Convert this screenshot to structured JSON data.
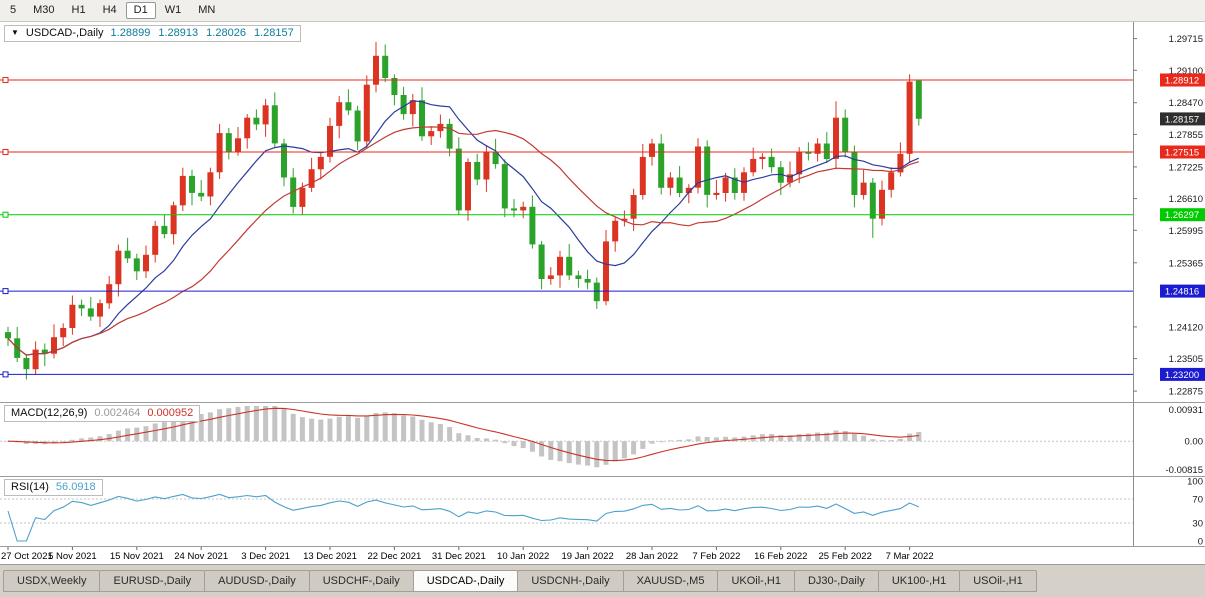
{
  "toolbar": {
    "timeframes": [
      {
        "label": "5",
        "active": false
      },
      {
        "label": "M30",
        "active": false
      },
      {
        "label": "H1",
        "active": false
      },
      {
        "label": "H4",
        "active": false
      },
      {
        "label": "D1",
        "active": true
      },
      {
        "label": "W1",
        "active": false
      },
      {
        "label": "MN",
        "active": false
      }
    ]
  },
  "chart": {
    "symbol_label": "USDCAD-,Daily",
    "dropdown_icon": "▼",
    "ohlc_text": "1.28899 1.28913 1.28026 1.28157"
  },
  "panels": {
    "macd": {
      "label": "MACD(12,26,9)",
      "main_value": "0.002464",
      "signal_value": "0.000952"
    },
    "rsi": {
      "label": "RSI(14)",
      "value": "56.0918"
    }
  },
  "tabs": {
    "items": [
      {
        "label": "USDX,Weekly",
        "active": false
      },
      {
        "label": "EURUSD-,Daily",
        "active": false
      },
      {
        "label": "AUDUSD-,Daily",
        "active": false
      },
      {
        "label": "USDCHF-,Daily",
        "active": false
      },
      {
        "label": "USDCAD-,Daily",
        "active": true
      },
      {
        "label": "USDCNH-,Daily",
        "active": false
      },
      {
        "label": "XAUUSD-,M5",
        "active": false
      },
      {
        "label": "UKOil-,H1",
        "active": false
      },
      {
        "label": "DJ30-,Daily",
        "active": false
      },
      {
        "label": "UK100-,H1",
        "active": false
      },
      {
        "label": "USOil-,H1",
        "active": false
      }
    ]
  },
  "chart_data": {
    "type": "candlestick",
    "symbol": "USDCAD-",
    "timeframe": "Daily",
    "ohlc_display": [
      "1.28899",
      "1.28913",
      "1.28026",
      "1.28157"
    ],
    "price_axis": {
      "min": 1.2278,
      "max": 1.2992,
      "labels": [
        "1.29715",
        "1.29100",
        "1.28470",
        "1.27855",
        "1.27225",
        "1.26610",
        "1.25995",
        "1.25365",
        "1.24120",
        "1.23505",
        "1.22875"
      ]
    },
    "h_lines": [
      {
        "price": 1.28912,
        "label": "1.28912",
        "color": "#e8291b"
      },
      {
        "price": 1.27515,
        "label": "1.27515",
        "color": "#e8291b"
      },
      {
        "price": 1.26297,
        "label": "1.26297",
        "color": "#00cb00"
      },
      {
        "price": 1.24816,
        "label": "1.24816",
        "color": "#1b1bd0"
      },
      {
        "price": 1.232,
        "label": "1.23200",
        "color": "#1b1bd0"
      }
    ],
    "current_price": {
      "value": 1.28157,
      "label": "1.28157"
    },
    "moving_averages": [
      {
        "type": "sma",
        "period": 10,
        "color": "#2c3c9c"
      },
      {
        "type": "sma",
        "period": 21,
        "color": "#c23a31"
      }
    ],
    "macd": {
      "params": "12,26,9",
      "scale_max": 0.00931,
      "scale_min": -0.00815,
      "axis_labels": [
        "0.00931",
        "0.00",
        "-0.00815"
      ]
    },
    "rsi": {
      "period": 14,
      "levels": [
        70,
        30
      ],
      "axis_labels": [
        "100",
        "70",
        "30",
        "0"
      ]
    },
    "colors": {
      "up_candle": "#db3423",
      "down_candle": "#2ba32b",
      "line_red": "#e8291b",
      "line_green": "#00cb00",
      "line_blue": "#1b1bd0",
      "current_price_tag": "#2e2e2e",
      "macd_hist": "#c4c4c4",
      "macd_signal": "#ca3327",
      "rsi_line": "#4da0cc",
      "ohlc_text": "#0a7c9c"
    },
    "date_labels": [
      {
        "i": 0,
        "t": "27 Oct 2021"
      },
      {
        "i": 7,
        "t": "5 Nov 2021"
      },
      {
        "i": 14,
        "t": "15 Nov 2021"
      },
      {
        "i": 21,
        "t": "24 Nov 2021"
      },
      {
        "i": 28,
        "t": "3 Dec 2021"
      },
      {
        "i": 35,
        "t": "13 Dec 2021"
      },
      {
        "i": 42,
        "t": "22 Dec 2021"
      },
      {
        "i": 49,
        "t": "31 Dec 2021"
      },
      {
        "i": 56,
        "t": "10 Jan 2022"
      },
      {
        "i": 63,
        "t": "19 Jan 2022"
      },
      {
        "i": 70,
        "t": "28 Jan 2022"
      },
      {
        "i": 77,
        "t": "7 Feb 2022"
      },
      {
        "i": 84,
        "t": "16 Feb 2022"
      },
      {
        "i": 91,
        "t": "25 Feb 2022"
      },
      {
        "i": 98,
        "t": "7 Mar 2022"
      }
    ],
    "candles": [
      [
        1.2402,
        1.2412,
        1.2375,
        1.239
      ],
      [
        1.239,
        1.2412,
        1.2344,
        1.2352
      ],
      [
        1.2352,
        1.2359,
        1.231,
        1.233
      ],
      [
        1.233,
        1.2384,
        1.2319,
        1.2368
      ],
      [
        1.2368,
        1.238,
        1.2336,
        1.236
      ],
      [
        1.236,
        1.2417,
        1.2351,
        1.2392
      ],
      [
        1.2392,
        1.2419,
        1.2375,
        1.241
      ],
      [
        1.241,
        1.2473,
        1.2397,
        1.2455
      ],
      [
        1.2455,
        1.2465,
        1.2433,
        1.2448
      ],
      [
        1.2448,
        1.247,
        1.2424,
        1.2432
      ],
      [
        1.2432,
        1.2465,
        1.2412,
        1.2458
      ],
      [
        1.2458,
        1.2511,
        1.2447,
        1.2495
      ],
      [
        1.2495,
        1.2572,
        1.2471,
        1.256
      ],
      [
        1.256,
        1.2585,
        1.2536,
        1.2545
      ],
      [
        1.2545,
        1.2554,
        1.2503,
        1.252
      ],
      [
        1.252,
        1.257,
        1.2507,
        1.2552
      ],
      [
        1.2552,
        1.2618,
        1.2537,
        1.2608
      ],
      [
        1.2608,
        1.263,
        1.2584,
        1.2592
      ],
      [
        1.2592,
        1.2655,
        1.2572,
        1.2648
      ],
      [
        1.2648,
        1.2721,
        1.2637,
        1.2705
      ],
      [
        1.2705,
        1.2717,
        1.2648,
        1.2672
      ],
      [
        1.2672,
        1.2697,
        1.2656,
        1.2665
      ],
      [
        1.2665,
        1.2721,
        1.2648,
        1.2712
      ],
      [
        1.2712,
        1.2806,
        1.2699,
        1.2788
      ],
      [
        1.2788,
        1.2798,
        1.2737,
        1.2752
      ],
      [
        1.2752,
        1.28,
        1.2744,
        1.2778
      ],
      [
        1.2778,
        1.2825,
        1.2758,
        1.2818
      ],
      [
        1.2818,
        1.2834,
        1.2794,
        1.2805
      ],
      [
        1.2805,
        1.2854,
        1.2781,
        1.2842
      ],
      [
        1.2842,
        1.2867,
        1.2759,
        1.2768
      ],
      [
        1.2768,
        1.2777,
        1.2685,
        1.2702
      ],
      [
        1.2702,
        1.272,
        1.2632,
        1.2645
      ],
      [
        1.2645,
        1.2692,
        1.263,
        1.2682
      ],
      [
        1.2682,
        1.274,
        1.2674,
        1.2718
      ],
      [
        1.2718,
        1.2749,
        1.2698,
        1.2742
      ],
      [
        1.2742,
        1.2818,
        1.2731,
        1.2802
      ],
      [
        1.2802,
        1.286,
        1.2778,
        1.2848
      ],
      [
        1.2848,
        1.2873,
        1.2823,
        1.2832
      ],
      [
        1.2832,
        1.2841,
        1.2755,
        1.2772
      ],
      [
        1.2772,
        1.29,
        1.2759,
        1.2882
      ],
      [
        1.2882,
        1.2965,
        1.2867,
        1.2938
      ],
      [
        1.2938,
        1.296,
        1.2887,
        1.2895
      ],
      [
        1.2895,
        1.2902,
        1.2842,
        1.2862
      ],
      [
        1.2862,
        1.2878,
        1.2814,
        1.2825
      ],
      [
        1.2825,
        1.2864,
        1.2801,
        1.2852
      ],
      [
        1.2852,
        1.2877,
        1.2773,
        1.2782
      ],
      [
        1.2782,
        1.2801,
        1.2765,
        1.2792
      ],
      [
        1.2792,
        1.2824,
        1.2779,
        1.2806
      ],
      [
        1.2806,
        1.2816,
        1.2743,
        1.2758
      ],
      [
        1.2758,
        1.278,
        1.263,
        1.2638
      ],
      [
        1.2638,
        1.2739,
        1.2618,
        1.2732
      ],
      [
        1.2732,
        1.2748,
        1.2687,
        1.2698
      ],
      [
        1.2698,
        1.2764,
        1.2674,
        1.2752
      ],
      [
        1.2752,
        1.2777,
        1.2719,
        1.2728
      ],
      [
        1.2728,
        1.2737,
        1.2625,
        1.2642
      ],
      [
        1.2642,
        1.266,
        1.2625,
        1.2638
      ],
      [
        1.2638,
        1.2655,
        1.2623,
        1.2645
      ],
      [
        1.2645,
        1.2667,
        1.2564,
        1.2572
      ],
      [
        1.2572,
        1.2579,
        1.2485,
        1.2505
      ],
      [
        1.2505,
        1.2528,
        1.2494,
        1.2512
      ],
      [
        1.2512,
        1.256,
        1.2488,
        1.2548
      ],
      [
        1.2548,
        1.2573,
        1.2503,
        1.2512
      ],
      [
        1.2512,
        1.2521,
        1.2488,
        1.2505
      ],
      [
        1.2505,
        1.2523,
        1.2485,
        1.2498
      ],
      [
        1.2498,
        1.2508,
        1.2447,
        1.2462
      ],
      [
        1.2462,
        1.26,
        1.2454,
        1.2578
      ],
      [
        1.2578,
        1.2625,
        1.2558,
        1.2618
      ],
      [
        1.2618,
        1.2638,
        1.2607,
        1.2622
      ],
      [
        1.2622,
        1.268,
        1.2598,
        1.2668
      ],
      [
        1.2668,
        1.2767,
        1.2659,
        1.2742
      ],
      [
        1.2742,
        1.2777,
        1.2725,
        1.2768
      ],
      [
        1.2768,
        1.2786,
        1.2669,
        1.2682
      ],
      [
        1.2682,
        1.2712,
        1.2667,
        1.2702
      ],
      [
        1.2702,
        1.2724,
        1.2664,
        1.2672
      ],
      [
        1.2672,
        1.2689,
        1.2652,
        1.2682
      ],
      [
        1.2682,
        1.2778,
        1.2671,
        1.2762
      ],
      [
        1.2762,
        1.2774,
        1.2644,
        1.2668
      ],
      [
        1.2668,
        1.2697,
        1.2659,
        1.2672
      ],
      [
        1.2672,
        1.2711,
        1.2655,
        1.2702
      ],
      [
        1.2702,
        1.272,
        1.2659,
        1.2672
      ],
      [
        1.2672,
        1.2722,
        1.2657,
        1.2712
      ],
      [
        1.2712,
        1.276,
        1.2704,
        1.2738
      ],
      [
        1.2738,
        1.2749,
        1.2718,
        1.2742
      ],
      [
        1.2742,
        1.2758,
        1.2711,
        1.2722
      ],
      [
        1.2722,
        1.2734,
        1.2668,
        1.2692
      ],
      [
        1.2692,
        1.2733,
        1.2683,
        1.2708
      ],
      [
        1.2708,
        1.2761,
        1.2691,
        1.2752
      ],
      [
        1.2752,
        1.277,
        1.2735,
        1.2748
      ],
      [
        1.2748,
        1.2778,
        1.2733,
        1.2768
      ],
      [
        1.2768,
        1.279,
        1.273,
        1.2738
      ],
      [
        1.2738,
        1.285,
        1.2718,
        1.2818
      ],
      [
        1.2818,
        1.2834,
        1.2741,
        1.2752
      ],
      [
        1.2752,
        1.2764,
        1.2644,
        1.2668
      ],
      [
        1.2668,
        1.2717,
        1.2659,
        1.2692
      ],
      [
        1.2692,
        1.2701,
        1.2585,
        1.2622
      ],
      [
        1.2622,
        1.2696,
        1.2609,
        1.2678
      ],
      [
        1.2678,
        1.2722,
        1.2663,
        1.2712
      ],
      [
        1.2712,
        1.277,
        1.2704,
        1.2748
      ],
      [
        1.2748,
        1.2902,
        1.273,
        1.2888
      ],
      [
        1.28899,
        1.28913,
        1.28026,
        1.28157
      ]
    ]
  }
}
